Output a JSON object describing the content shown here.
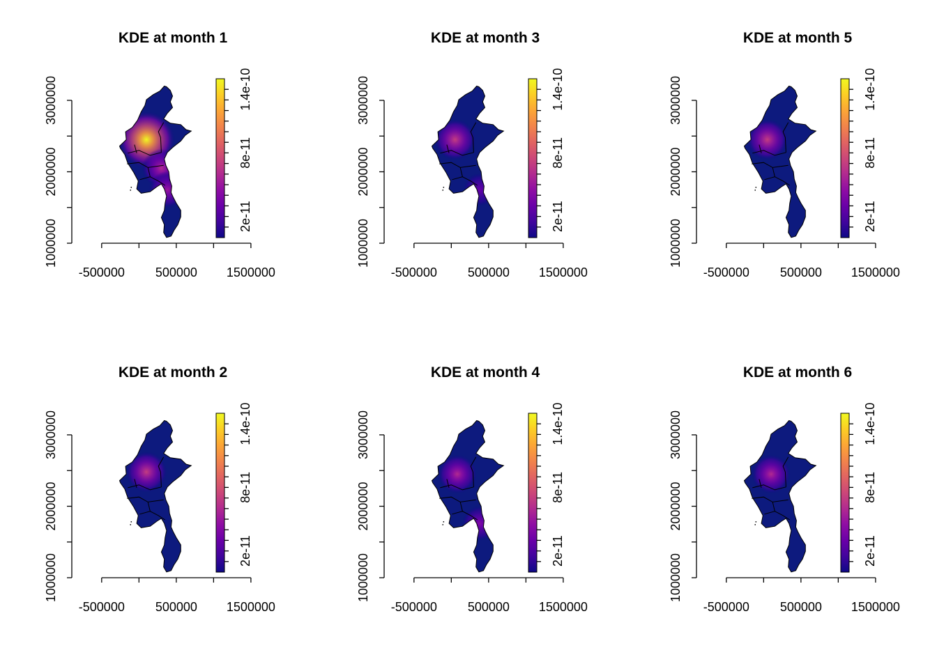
{
  "chart_data": [
    {
      "type": "heatmap",
      "title": "KDE at month 1",
      "xlabel": "",
      "ylabel": "",
      "xlim": [
        -900000,
        1800000
      ],
      "ylim": [
        1000000,
        3400000
      ],
      "xticks": [
        -500000,
        0,
        500000,
        1000000,
        1500000
      ],
      "xtick_labels": [
        "-500000",
        "500000",
        "1500000"
      ],
      "yticks": [
        1000000,
        1500000,
        2000000,
        2500000,
        3000000
      ],
      "ytick_labels": [
        "1000000",
        "2000000",
        "3000000"
      ],
      "colorbar": {
        "range": [
          0,
          1.5e-10
        ],
        "tick_labels": [
          "2e-11",
          "8e-11",
          "1.4e-10"
        ],
        "palette": "plasma"
      },
      "hotspots": [
        {
          "x": 100000,
          "y": 2450000,
          "value": 1.5e-10
        },
        {
          "x": 300000,
          "y": 2050000,
          "value": 6e-11
        },
        {
          "x": 380000,
          "y": 1750000,
          "value": 5e-11
        }
      ]
    },
    {
      "type": "heatmap",
      "title": "KDE at month 3",
      "xlabel": "",
      "ylabel": "",
      "xlim": [
        -900000,
        1800000
      ],
      "ylim": [
        1000000,
        3400000
      ],
      "xticks": [
        -500000,
        0,
        500000,
        1000000,
        1500000
      ],
      "xtick_labels": [
        "-500000",
        "500000",
        "1500000"
      ],
      "yticks": [
        1000000,
        1500000,
        2000000,
        2500000,
        3000000
      ],
      "ytick_labels": [
        "1000000",
        "2000000",
        "3000000"
      ],
      "colorbar": {
        "range": [
          0,
          1.5e-10
        ],
        "tick_labels": [
          "2e-11",
          "8e-11",
          "1.4e-10"
        ],
        "palette": "plasma"
      },
      "hotspots": [
        {
          "x": 50000,
          "y": 2450000,
          "value": 7e-11
        },
        {
          "x": 380000,
          "y": 1750000,
          "value": 3e-11
        }
      ]
    },
    {
      "type": "heatmap",
      "title": "KDE at month 5",
      "xlabel": "",
      "ylabel": "",
      "xlim": [
        -900000,
        1800000
      ],
      "ylim": [
        1000000,
        3400000
      ],
      "xticks": [
        -500000,
        0,
        500000,
        1000000,
        1500000
      ],
      "xtick_labels": [
        "-500000",
        "500000",
        "1500000"
      ],
      "yticks": [
        1000000,
        1500000,
        2000000,
        2500000,
        3000000
      ],
      "ytick_labels": [
        "1000000",
        "2000000",
        "3000000"
      ],
      "colorbar": {
        "range": [
          0,
          1.5e-10
        ],
        "tick_labels": [
          "2e-11",
          "8e-11",
          "1.4e-10"
        ],
        "palette": "plasma"
      },
      "hotspots": [
        {
          "x": 50000,
          "y": 2450000,
          "value": 7e-11
        }
      ]
    },
    {
      "type": "heatmap",
      "title": "KDE at month 2",
      "xlabel": "",
      "ylabel": "",
      "xlim": [
        -900000,
        1800000
      ],
      "ylim": [
        1000000,
        3400000
      ],
      "xticks": [
        -500000,
        0,
        500000,
        1000000,
        1500000
      ],
      "xtick_labels": [
        "-500000",
        "500000",
        "1500000"
      ],
      "yticks": [
        1000000,
        1500000,
        2000000,
        2500000,
        3000000
      ],
      "ytick_labels": [
        "1000000",
        "2000000",
        "3000000"
      ],
      "colorbar": {
        "range": [
          0,
          1.5e-10
        ],
        "tick_labels": [
          "2e-11",
          "8e-11",
          "1.4e-10"
        ],
        "palette": "plasma"
      },
      "hotspots": [
        {
          "x": 100000,
          "y": 2480000,
          "value": 7e-11
        }
      ]
    },
    {
      "type": "heatmap",
      "title": "KDE at month 4",
      "xlabel": "",
      "ylabel": "",
      "xlim": [
        -900000,
        1800000
      ],
      "ylim": [
        1000000,
        3400000
      ],
      "xticks": [
        -500000,
        0,
        500000,
        1000000,
        1500000
      ],
      "xtick_labels": [
        "-500000",
        "500000",
        "1500000"
      ],
      "yticks": [
        1000000,
        1500000,
        2000000,
        2500000,
        3000000
      ],
      "ytick_labels": [
        "1000000",
        "2000000",
        "3000000"
      ],
      "colorbar": {
        "range": [
          0,
          1.5e-10
        ],
        "tick_labels": [
          "2e-11",
          "8e-11",
          "1.4e-10"
        ],
        "palette": "plasma"
      },
      "hotspots": [
        {
          "x": 80000,
          "y": 2450000,
          "value": 6e-11
        },
        {
          "x": 380000,
          "y": 1760000,
          "value": 4e-11
        }
      ]
    },
    {
      "type": "heatmap",
      "title": "KDE at month 6",
      "xlabel": "",
      "ylabel": "",
      "xlim": [
        -900000,
        1800000
      ],
      "ylim": [
        1000000,
        3400000
      ],
      "xticks": [
        -500000,
        0,
        500000,
        1000000,
        1500000
      ],
      "xtick_labels": [
        "-500000",
        "500000",
        "1500000"
      ],
      "yticks": [
        1000000,
        1500000,
        2000000,
        2500000,
        3000000
      ],
      "ytick_labels": [
        "1000000",
        "2000000",
        "3000000"
      ],
      "colorbar": {
        "range": [
          0,
          1.5e-10
        ],
        "tick_labels": [
          "2e-11",
          "8e-11",
          "1.4e-10"
        ],
        "palette": "plasma"
      },
      "hotspots": [
        {
          "x": 100000,
          "y": 2450000,
          "value": 6e-11
        }
      ]
    }
  ],
  "colors": {
    "plasma": [
      "#0d0887",
      "#41049d",
      "#6a00a8",
      "#8f0da4",
      "#b12a90",
      "#cc4778",
      "#e16462",
      "#f2844b",
      "#fca636",
      "#fcce25",
      "#f0f921"
    ],
    "base": "#0d1a7e",
    "axis": "#000000"
  }
}
